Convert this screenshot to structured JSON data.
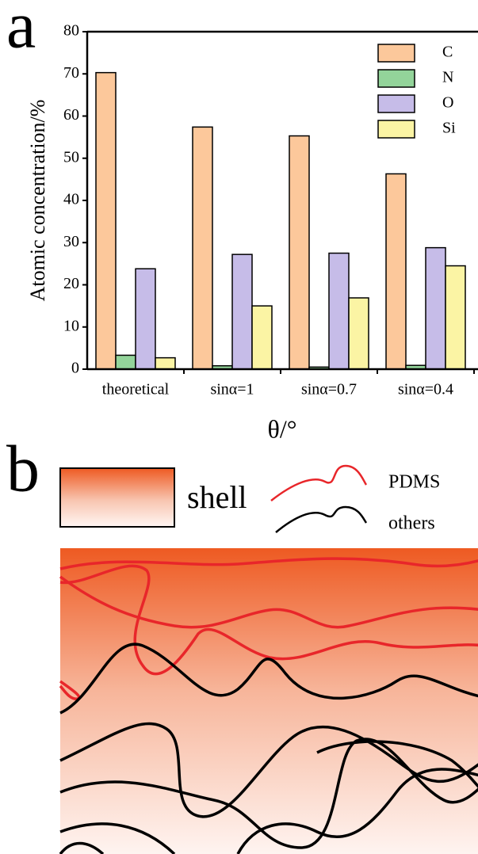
{
  "chart_data": {
    "type": "bar",
    "panel_label": "a",
    "x_label": "θ/°",
    "y_label": "Atomic concentration/%",
    "categories": [
      "theoretical",
      "sinα=1",
      "sinα=0.7",
      "sinα=0.4"
    ],
    "series": [
      {
        "name": "C",
        "color": "#fcc89b",
        "values": [
          70.3,
          57.4,
          55.3,
          46.3
        ]
      },
      {
        "name": "N",
        "color": "#93d49a",
        "values": [
          3.3,
          0.8,
          0.5,
          0.9
        ]
      },
      {
        "name": "O",
        "color": "#c6bce8",
        "values": [
          23.8,
          27.2,
          27.5,
          28.8
        ]
      },
      {
        "name": "Si",
        "color": "#fbf4a4",
        "values": [
          2.7,
          15.0,
          16.9,
          24.5
        ]
      }
    ],
    "ylim": [
      0,
      80
    ],
    "yticks": [
      0,
      10,
      20,
      30,
      40,
      50,
      60,
      70,
      80
    ],
    "legend": "upper right",
    "grid": false
  },
  "diagram": {
    "panel_label": "b",
    "shell_label": "shell",
    "lines": [
      {
        "name": "PDMS",
        "color": "#e8262a"
      },
      {
        "name": "others",
        "color": "#000000"
      }
    ]
  }
}
